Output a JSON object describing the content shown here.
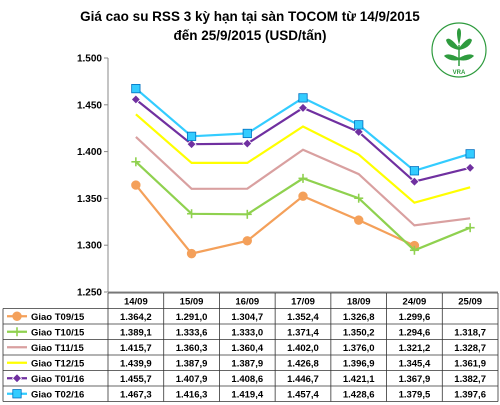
{
  "chart_data": {
    "type": "line",
    "title": "Giá cao su RSS 3 kỳ hạn tại sàn TOCOM từ 14/9/2015",
    "subtitle": "đến 25/9/2015 (USD/tấn)",
    "categories": [
      "14/09",
      "15/09",
      "16/09",
      "17/09",
      "18/09",
      "24/09",
      "25/09"
    ],
    "ylim": [
      1.25,
      1.5
    ],
    "yticks": [
      "1.250",
      "1.300",
      "1.350",
      "1.400",
      "1.450",
      "1.500"
    ],
    "ytick_values": [
      1.25,
      1.3,
      1.35,
      1.4,
      1.45,
      1.5
    ],
    "grid": false,
    "legend": "table-bottom",
    "series": [
      {
        "name": "Giao T09/15",
        "color": "#f4a05a",
        "marker": "circle",
        "values": [
          1.3642,
          1.291,
          1.3047,
          1.3524,
          1.3268,
          1.2996,
          null
        ],
        "labels": [
          "1.364,2",
          "1.291,0",
          "1.304,7",
          "1.352,4",
          "1.326,8",
          "1.299,6",
          ""
        ]
      },
      {
        "name": "Giao T10/15",
        "color": "#8fd14f",
        "marker": "plus",
        "values": [
          1.3891,
          1.3336,
          1.333,
          1.3714,
          1.3502,
          1.2946,
          1.3187
        ],
        "labels": [
          "1.389,1",
          "1.333,6",
          "1.333,0",
          "1.371,4",
          "1.350,2",
          "1.294,6",
          "1.318,7"
        ]
      },
      {
        "name": "Giao T11/15",
        "color": "#d9a0a0",
        "marker": "line",
        "values": [
          1.4157,
          1.3603,
          1.3604,
          1.402,
          1.376,
          1.3212,
          1.3287
        ],
        "labels": [
          "1.415,7",
          "1.360,3",
          "1.360,4",
          "1.402,0",
          "1.376,0",
          "1.321,2",
          "1.328,7"
        ]
      },
      {
        "name": "Giao T12/15",
        "color": "#ffff00",
        "marker": "line",
        "values": [
          1.4399,
          1.3879,
          1.3879,
          1.4268,
          1.3969,
          1.3454,
          1.3619
        ],
        "labels": [
          "1.439,9",
          "1.387,9",
          "1.387,9",
          "1.426,8",
          "1.396,9",
          "1.345,4",
          "1.361,9"
        ]
      },
      {
        "name": "Giao T01/16",
        "color": "#7030a0",
        "marker": "diamond",
        "values": [
          1.4557,
          1.4079,
          1.4086,
          1.4467,
          1.4211,
          1.3679,
          1.3827
        ],
        "labels": [
          "1.455,7",
          "1.407,9",
          "1.408,6",
          "1.446,7",
          "1.421,1",
          "1.367,9",
          "1.382,7"
        ]
      },
      {
        "name": "Giao T02/16",
        "color": "#33ccff",
        "marker": "square",
        "values": [
          1.4673,
          1.4163,
          1.4194,
          1.4574,
          1.4286,
          1.3795,
          1.3976
        ],
        "labels": [
          "1.467,3",
          "1.416,3",
          "1.419,4",
          "1.457,4",
          "1.428,6",
          "1.379,5",
          "1.397,6"
        ]
      }
    ]
  },
  "logo": {
    "text": "VRA",
    "leaf_color": "#2e9b3e"
  }
}
